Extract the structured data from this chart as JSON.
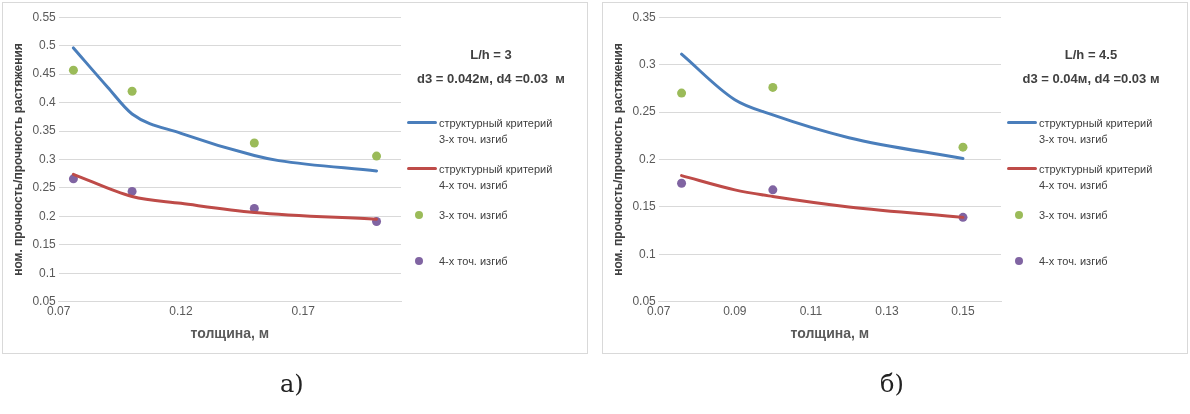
{
  "chart_data": [
    {
      "type": "line",
      "xlabel": "толщина, м",
      "ylabel": "ном. прочность/прочность растяжения",
      "xlim": [
        0.07,
        0.21
      ],
      "xticks": [
        0.07,
        0.12,
        0.17
      ],
      "ylim": [
        0.05,
        0.55
      ],
      "yticks": [
        0.05,
        0.1,
        0.15,
        0.2,
        0.25,
        0.3,
        0.35,
        0.4,
        0.45,
        0.5,
        0.55
      ],
      "grid": "y",
      "legend": "right",
      "marker": "circle",
      "annotations": [
        "L/h = 3",
        "d3 = 0.042м, d4 =0.03  м",
        "а)"
      ],
      "series": [
        {
          "name": "структурный критерий 3-х точ. изгиб",
          "type": "line",
          "marker": "none",
          "color": "#4a7ebb",
          "x": [
            0.076,
            0.09,
            0.1,
            0.12,
            0.15,
            0.16,
            0.2
          ],
          "values": [
            0.496,
            0.427,
            0.38,
            0.346,
            0.307,
            0.298,
            0.28
          ]
        },
        {
          "name": "структурный критерий 4-х точ. изгиб",
          "type": "line",
          "marker": "none",
          "color": "#be4b48",
          "x": [
            0.076,
            0.1,
            0.12,
            0.15,
            0.2
          ],
          "values": [
            0.274,
            0.235,
            0.223,
            0.207,
            0.195
          ]
        },
        {
          "name": "3-х точ. изгиб",
          "type": "scatter",
          "color": "#9bbb59",
          "x": [
            0.076,
            0.1,
            0.15,
            0.2
          ],
          "values": [
            0.457,
            0.42,
            0.329,
            0.306
          ]
        },
        {
          "name": "4-х точ. изгиб",
          "type": "scatter",
          "color": "#8064a2",
          "x": [
            0.076,
            0.1,
            0.15,
            0.2
          ],
          "values": [
            0.266,
            0.244,
            0.214,
            0.191
          ]
        }
      ]
    },
    {
      "type": "line",
      "xlabel": "толщина, м",
      "ylabel": "ном. прочность/прочность растяжения",
      "xlim": [
        0.07,
        0.16
      ],
      "xticks": [
        0.07,
        0.09,
        0.11,
        0.13,
        0.15
      ],
      "ylim": [
        0.05,
        0.35
      ],
      "yticks": [
        0.05,
        0.1,
        0.15,
        0.2,
        0.25,
        0.3,
        0.35
      ],
      "grid": "y",
      "legend": "right",
      "marker": "circle",
      "annotations": [
        "L/h = 4.5",
        "d3 = 0.04м, d4 =0.03 м",
        "б)"
      ],
      "series": [
        {
          "name": "структурный критерий 3-х точ. изгиб",
          "type": "line",
          "marker": "none",
          "color": "#4a7ebb",
          "x": [
            0.076,
            0.09,
            0.1,
            0.12,
            0.15
          ],
          "values": [
            0.311,
            0.263,
            0.247,
            0.223,
            0.201
          ]
        },
        {
          "name": "структурный критерий 4-х точ. изгиб",
          "type": "line",
          "marker": "none",
          "color": "#be4b48",
          "x": [
            0.076,
            0.09,
            0.1,
            0.12,
            0.15
          ],
          "values": [
            0.183,
            0.168,
            0.161,
            0.15,
            0.139
          ]
        },
        {
          "name": "3-х точ. изгиб",
          "type": "scatter",
          "color": "#9bbb59",
          "x": [
            0.076,
            0.1,
            0.15
          ],
          "values": [
            0.27,
            0.276,
            0.213
          ]
        },
        {
          "name": "4-х точ. изгиб",
          "type": "scatter",
          "color": "#8064a2",
          "x": [
            0.076,
            0.1,
            0.15
          ],
          "values": [
            0.175,
            0.168,
            0.139
          ]
        }
      ]
    }
  ]
}
